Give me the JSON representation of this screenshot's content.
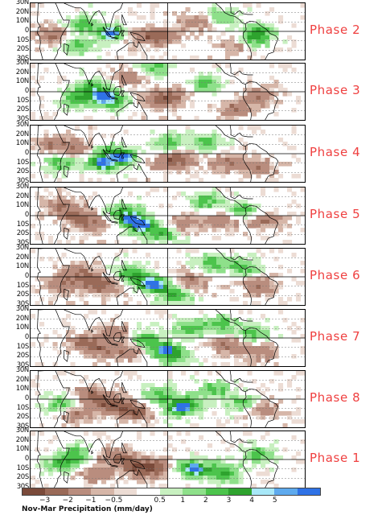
{
  "latitude_labels": [
    "30N",
    "20N",
    "10N",
    "0",
    "10S",
    "20S",
    "30S"
  ],
  "panels": [
    {
      "label": "Phase 2",
      "wet_centers": [
        [
          105,
          -2
        ],
        [
          70,
          8
        ],
        [
          290,
          -10
        ],
        [
          300,
          0
        ],
        [
          250,
          15
        ],
        [
          60,
          -15
        ]
      ],
      "strong_wet": [
        [
          105,
          -2
        ]
      ],
      "dry_centers": [
        [
          150,
          -5
        ],
        [
          175,
          -5
        ],
        [
          220,
          10
        ],
        [
          270,
          -15
        ],
        [
          30,
          -5
        ]
      ]
    },
    {
      "label": "Phase 3",
      "wet_centers": [
        [
          95,
          -5
        ],
        [
          80,
          5
        ],
        [
          110,
          -10
        ],
        [
          60,
          -8
        ],
        [
          160,
          25
        ],
        [
          230,
          8
        ]
      ],
      "strong_wet": [
        [
          95,
          -5
        ]
      ],
      "dry_centers": [
        [
          165,
          -10
        ],
        [
          185,
          -5
        ],
        [
          270,
          -18
        ],
        [
          300,
          -5
        ],
        [
          130,
          15
        ]
      ]
    },
    {
      "label": "Phase 4",
      "wet_centers": [
        [
          105,
          0
        ],
        [
          120,
          -5
        ],
        [
          90,
          -8
        ],
        [
          180,
          12
        ],
        [
          230,
          12
        ],
        [
          40,
          -10
        ]
      ],
      "strong_wet": [
        [
          95,
          -12
        ],
        [
          125,
          -3
        ]
      ],
      "dry_centers": [
        [
          180,
          -10
        ],
        [
          200,
          -5
        ],
        [
          60,
          5
        ],
        [
          260,
          -10
        ],
        [
          300,
          -15
        ],
        [
          30,
          10
        ]
      ]
    },
    {
      "label": "Phase 5",
      "wet_centers": [
        [
          135,
          -3
        ],
        [
          150,
          -12
        ],
        [
          120,
          5
        ],
        [
          175,
          -20
        ],
        [
          280,
          5
        ],
        [
          230,
          15
        ]
      ],
      "strong_wet": [
        [
          130,
          -5
        ],
        [
          145,
          -10
        ]
      ],
      "dry_centers": [
        [
          60,
          0
        ],
        [
          80,
          -10
        ],
        [
          200,
          -8
        ],
        [
          250,
          -5
        ],
        [
          305,
          -5
        ],
        [
          40,
          10
        ]
      ]
    },
    {
      "label": "Phase 6",
      "wet_centers": [
        [
          150,
          -5
        ],
        [
          170,
          -10
        ],
        [
          130,
          5
        ],
        [
          190,
          -20
        ],
        [
          240,
          15
        ],
        [
          280,
          10
        ]
      ],
      "strong_wet": [
        [
          160,
          -8
        ]
      ],
      "dry_centers": [
        [
          80,
          -5
        ],
        [
          60,
          5
        ],
        [
          100,
          -12
        ],
        [
          210,
          -5
        ],
        [
          300,
          -10
        ],
        [
          40,
          -10
        ]
      ]
    },
    {
      "label": "Phase 7",
      "wet_centers": [
        [
          170,
          -12
        ],
        [
          190,
          -20
        ],
        [
          150,
          0
        ],
        [
          210,
          10
        ],
        [
          250,
          15
        ],
        [
          290,
          5
        ]
      ],
      "strong_wet": [
        [
          180,
          -12
        ]
      ],
      "dry_centers": [
        [
          70,
          -5
        ],
        [
          90,
          -12
        ],
        [
          110,
          5
        ],
        [
          130,
          -15
        ],
        [
          260,
          -8
        ],
        [
          300,
          -15
        ]
      ]
    },
    {
      "label": "Phase 8",
      "wet_centers": [
        [
          190,
          -10
        ],
        [
          210,
          -5
        ],
        [
          170,
          5
        ],
        [
          240,
          10
        ],
        [
          280,
          -5
        ],
        [
          40,
          -5
        ]
      ],
      "strong_wet": [
        [
          200,
          -8
        ]
      ],
      "dry_centers": [
        [
          100,
          -5
        ],
        [
          120,
          -10
        ],
        [
          80,
          5
        ],
        [
          140,
          -15
        ],
        [
          300,
          -10
        ],
        [
          60,
          -15
        ]
      ]
    },
    {
      "label": "Phase 1",
      "wet_centers": [
        [
          200,
          -8
        ],
        [
          230,
          -12
        ],
        [
          260,
          -15
        ],
        [
          40,
          -5
        ],
        [
          60,
          5
        ],
        [
          300,
          5
        ]
      ],
      "strong_wet": [
        [
          215,
          -10
        ]
      ],
      "dry_centers": [
        [
          130,
          -5
        ],
        [
          150,
          -12
        ],
        [
          110,
          5
        ],
        [
          170,
          -8
        ],
        [
          85,
          -15
        ]
      ]
    }
  ],
  "legend": {
    "title": "Nov-Mar Precipitation (mm/day)",
    "ticks": [
      "−3",
      "−2",
      "−1",
      "−0.5",
      "0.5",
      "1",
      "2",
      "3",
      "4",
      "5"
    ],
    "colors": [
      "#7a4a3a",
      "#9a6a58",
      "#b98d7e",
      "#d6b6a8",
      "#ecdcd4",
      "#ffffff",
      "#c8f0c0",
      "#8ee08a",
      "#4cc44c",
      "#2ea32e",
      "#a8e8f8",
      "#5eaaee",
      "#2f72e6"
    ]
  }
}
